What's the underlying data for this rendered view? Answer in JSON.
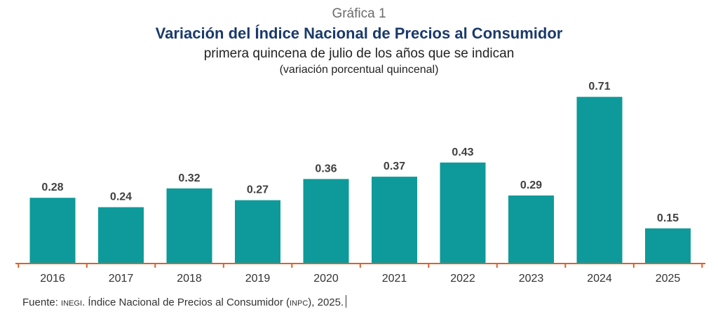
{
  "chart_data": {
    "type": "bar",
    "label": "Gráfica 1",
    "title": "Variación del Índice Nacional de Precios al Consumidor",
    "subtitle": "primera quincena de julio de los años que se indican",
    "unit_note": "(variación porcentual quincenal)",
    "categories": [
      "2016",
      "2017",
      "2018",
      "2019",
      "2020",
      "2021",
      "2022",
      "2023",
      "2024",
      "2025"
    ],
    "values": [
      0.28,
      0.24,
      0.32,
      0.27,
      0.36,
      0.37,
      0.43,
      0.29,
      0.71,
      0.15
    ],
    "value_labels": [
      "0.28",
      "0.24",
      "0.32",
      "0.27",
      "0.36",
      "0.37",
      "0.43",
      "0.29",
      "0.71",
      "0.15"
    ],
    "xlabel": "",
    "ylabel": "",
    "ylim": [
      0,
      0.75
    ],
    "grid": false,
    "bar_color": "#0e9a9a",
    "axis_color": "#d9622b",
    "label_color": "#404040"
  },
  "footer": {
    "prefix": "Fuente: ",
    "org": "INEGI",
    "middle": ". Índice Nacional de Precios al Consumidor (",
    "abbr": "INPC",
    "suffix": "), 2025."
  }
}
